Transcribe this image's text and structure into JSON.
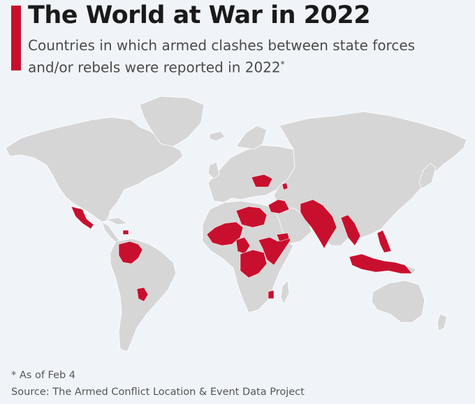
{
  "header": {
    "title": "The World at War in 2022",
    "subtitle": "Countries in which armed clashes between state forces and/or rebels were reported in 2022",
    "subtitle_mark": "*"
  },
  "footer": {
    "footnote": "* As of Feb 4",
    "source": "Source: The Armed Conflict Location & Event Data Project"
  },
  "colors": {
    "accent": "#c8102e",
    "conflict": "#c8102e",
    "land": "#d6d6d6",
    "background": "#f0f4f8"
  },
  "map": {
    "highlighted_countries": [
      "Mexico",
      "Haiti",
      "Colombia",
      "Venezuela",
      "Paraguay",
      "Mali",
      "Burkina Faso",
      "Niger",
      "Nigeria",
      "Cameroon",
      "Chad",
      "Libya",
      "Egypt",
      "Sudan",
      "South Sudan",
      "Central African Republic",
      "Democratic Republic of the Congo",
      "Ethiopia",
      "Somalia",
      "Yemen",
      "Mozambique",
      "Ukraine",
      "Azerbaijan",
      "Syria",
      "Iraq",
      "Afghanistan",
      "Pakistan",
      "India",
      "Myanmar",
      "Thailand",
      "Philippines",
      "Indonesia"
    ]
  }
}
